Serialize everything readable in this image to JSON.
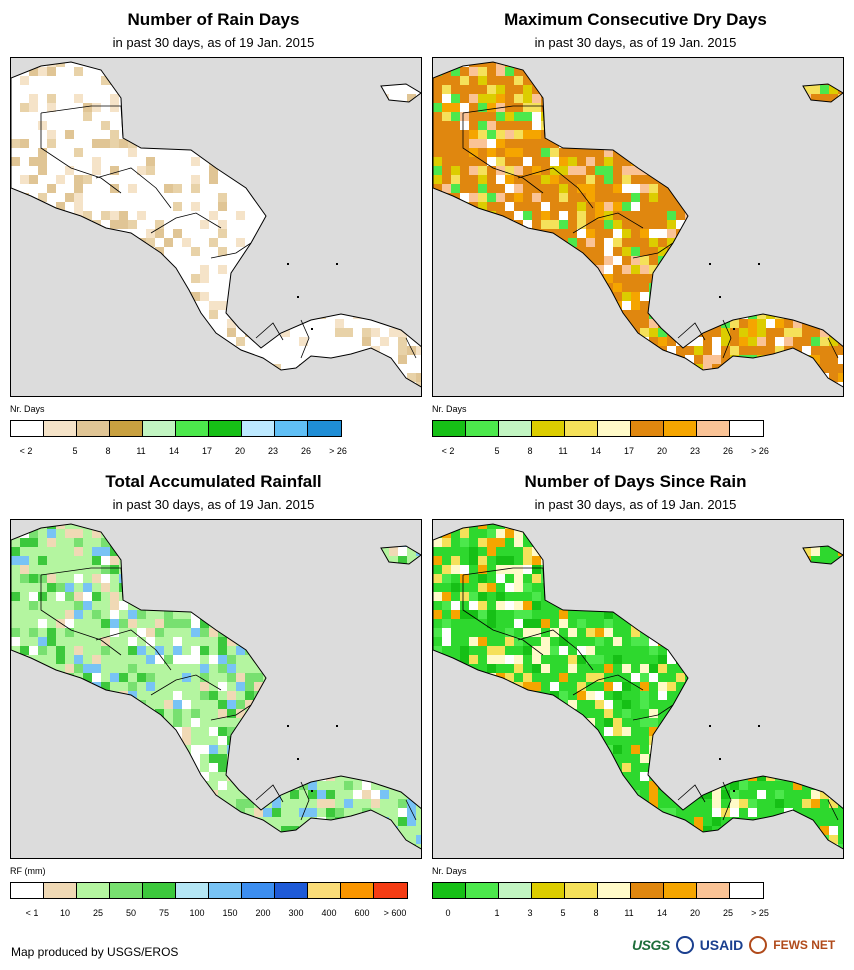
{
  "panels": [
    {
      "title": "Number of Rain Days",
      "subtitle": "in past 30 days, as of 19 Jan. 2015",
      "unit": "Nr. Days",
      "legend_colors": [
        "#ffffff",
        "#f5e3c8",
        "#e0c595",
        "#c8a040",
        "#c2f5c2",
        "#4ce84c",
        "#16c016",
        "#bde9ff",
        "#60bff5",
        "#1f8ed6"
      ],
      "ticks": [
        "< 2",
        "5",
        "8",
        "11",
        "14",
        "17",
        "20",
        "23",
        "26",
        "> 26"
      ],
      "land_base": "#ffffff",
      "palette": [
        "#ffffff",
        "#ffffff",
        "#f5e3c8",
        "#e8d2a8",
        "#e0c595",
        "#ffffff"
      ]
    },
    {
      "title": "Maximum Consecutive Dry Days",
      "subtitle": "in past 30 days, as of 19 Jan. 2015",
      "unit": "Nr. Days",
      "legend_colors": [
        "#16c016",
        "#4ce84c",
        "#c2f5c2",
        "#dccd00",
        "#f5e15a",
        "#fffac8",
        "#e0870f",
        "#f5a500",
        "#fac396",
        "#ffffff"
      ],
      "ticks": [
        "< 2",
        "5",
        "8",
        "11",
        "14",
        "17",
        "20",
        "23",
        "26",
        "> 26"
      ],
      "land_base": "#e0870f",
      "palette": [
        "#e0870f",
        "#f5a500",
        "#fac396",
        "#dccd00",
        "#f5e15a",
        "#ffffff",
        "#4ce84c"
      ]
    },
    {
      "title": "Total Accumulated Rainfall",
      "subtitle": "in past 30 days, as of 19 Jan. 2015",
      "unit": "RF (mm)",
      "legend_colors": [
        "#ffffff",
        "#f0d9b5",
        "#b4f5a0",
        "#78e070",
        "#3cc83c",
        "#b4e6f5",
        "#78c3f5",
        "#3c8ef0",
        "#1e5ad7",
        "#fadc78",
        "#fa9600",
        "#f53c14"
      ],
      "ticks": [
        "< 1",
        "10",
        "25",
        "50",
        "75",
        "100",
        "150",
        "200",
        "300",
        "400",
        "600",
        "> 600"
      ],
      "land_base": "#b4f5a0",
      "palette": [
        "#b4f5a0",
        "#78e070",
        "#ffffff",
        "#f0d9b5",
        "#78c3f5",
        "#3cc83c"
      ]
    },
    {
      "title": "Number of Days Since Rain",
      "subtitle": "in past 30 days, as of 19 Jan. 2015",
      "unit": "Nr. Days",
      "legend_colors": [
        "#16c016",
        "#4ce84c",
        "#c2f5c2",
        "#dccd00",
        "#f5e15a",
        "#fffac8",
        "#e0870f",
        "#f5a500",
        "#fac396",
        "#ffffff"
      ],
      "ticks": [
        "0",
        "1",
        "3",
        "5",
        "8",
        "11",
        "14",
        "20",
        "25",
        "> 25"
      ],
      "land_base": "#2ed82e",
      "palette": [
        "#2ed82e",
        "#16c016",
        "#4ce84c",
        "#fffac8",
        "#f5e15a",
        "#f5a500",
        "#ffffff"
      ]
    }
  ],
  "footer": {
    "credit": "Map produced by USGS/EROS",
    "logo_usgs": "USGS",
    "logo_usaid": "USAID",
    "logo_fews": "FEWS NET"
  }
}
